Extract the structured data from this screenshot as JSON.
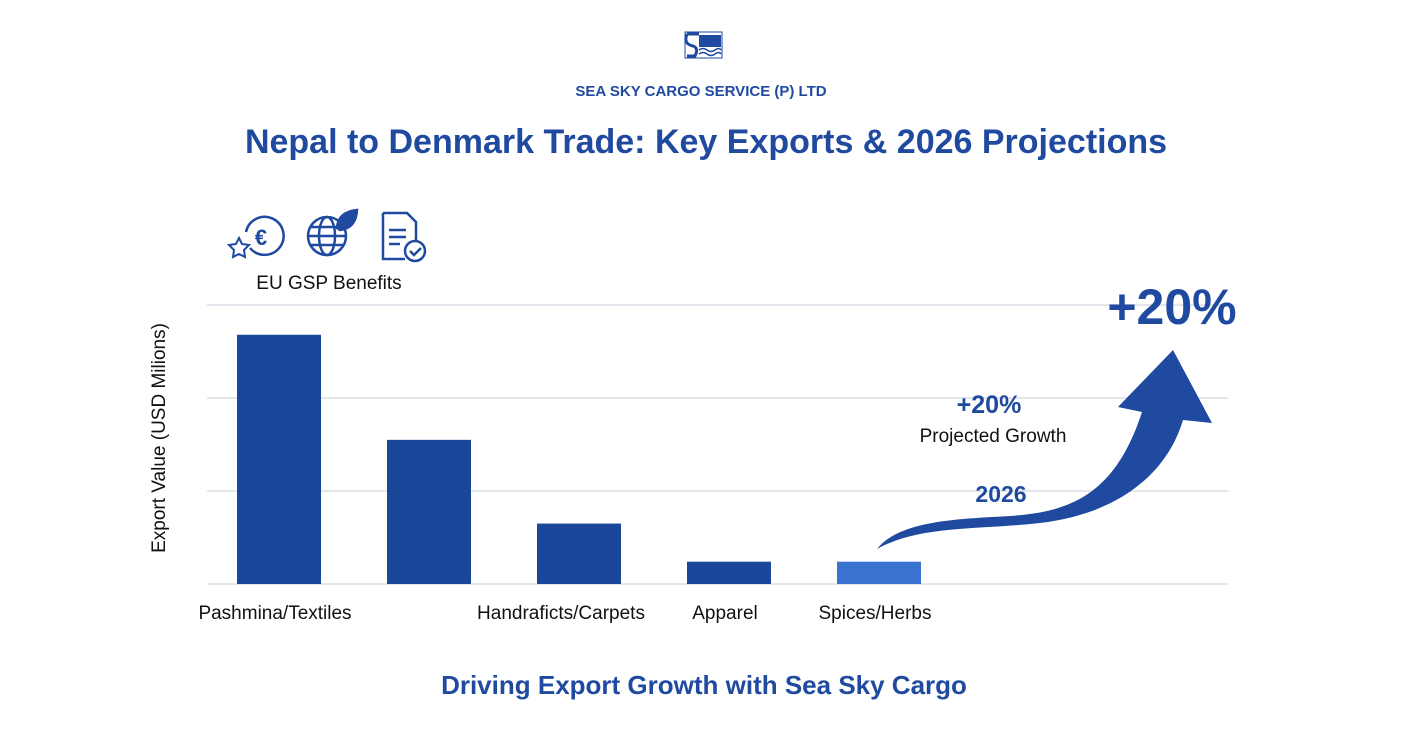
{
  "header": {
    "company": "SEA SKY CARGO SERVICE (P) LTD",
    "title": "Nepal to Denmark Trade: Key Exports & 2026 Projections",
    "logo_icon": "sea-sky-cargo-logo"
  },
  "benefits": {
    "label": "EU GSP Benefits",
    "icons": [
      "euro-star-icon",
      "globe-leaf-icon",
      "document-check-icon"
    ]
  },
  "footer": {
    "tagline": "Driving Export Growth with Sea Sky Cargo"
  },
  "projection": {
    "big_label": "+20%",
    "small_label": "+20%",
    "caption": "Projected Growth",
    "year": "2026",
    "icon": "curved-up-arrow-icon"
  },
  "colors": {
    "primary": "#1a4799",
    "highlight": "#3a73cf",
    "grid": "#e3e6ec"
  },
  "chart_data": {
    "type": "bar",
    "title": "",
    "xlabel": "",
    "ylabel": "Export Value (USD Milions)",
    "categories": [
      "Pashmina/Textiles",
      "",
      "Handraficts/Carpets",
      "Apparel",
      "Spices/Herbs"
    ],
    "values": [
      2.68,
      1.55,
      0.65,
      0.24,
      0.24
    ],
    "highlighted": [
      false,
      false,
      false,
      false,
      true
    ],
    "ylim": [
      0,
      3
    ],
    "grid": true,
    "y_tick_labels_shown": false
  }
}
